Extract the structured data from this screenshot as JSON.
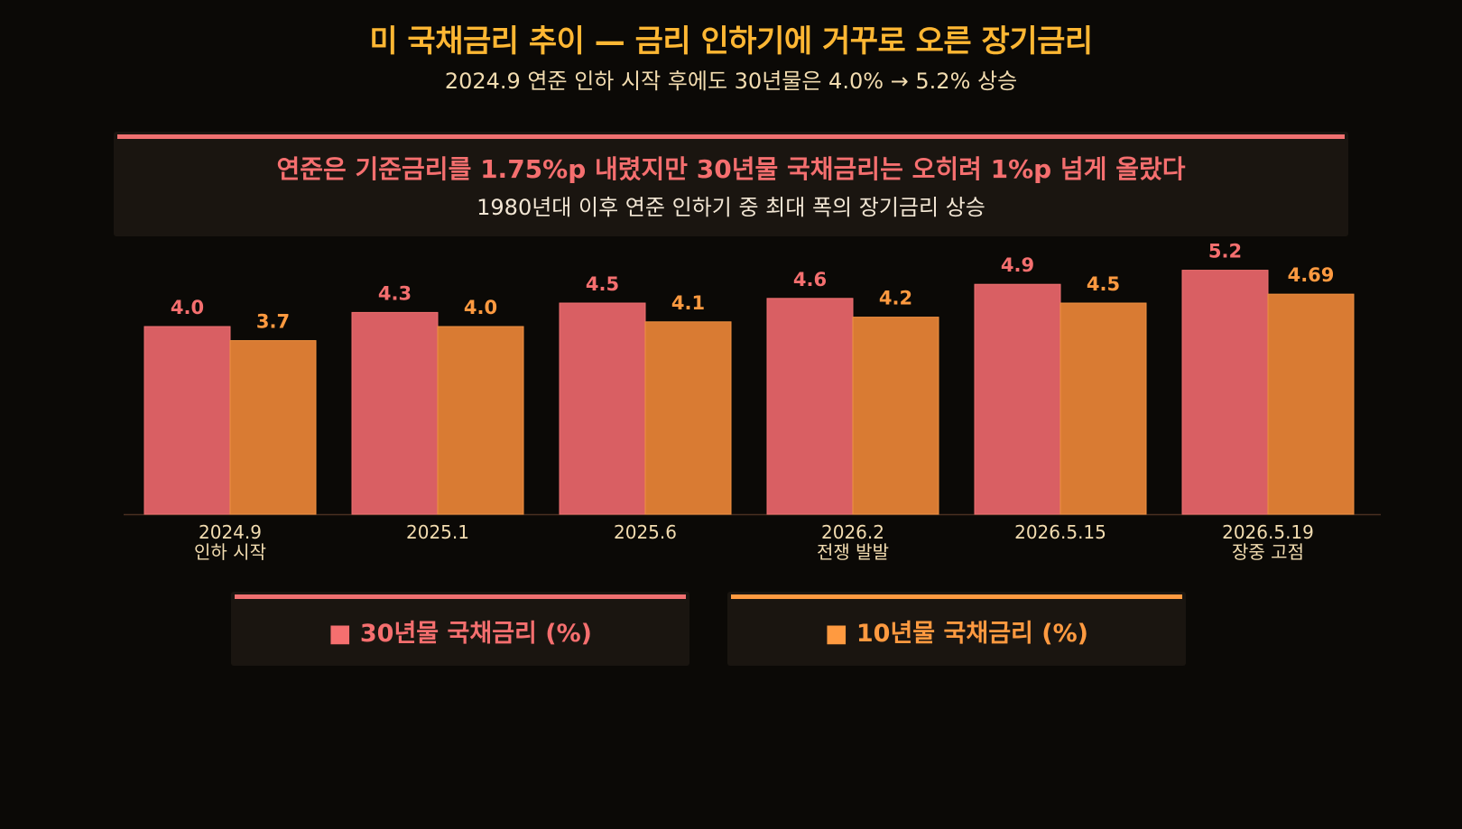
{
  "title": "미 국채금리 추이 — 금리 인하기에 거꾸로 오른 장기금리",
  "subtitle": "2024.9 연준 인하 시작 후에도 30년물은 4.0% → 5.2% 상승",
  "callout": {
    "headline": "연준은 기준금리를 1.75%p 내렸지만 30년물 국채금리는 오히려 1%p 넘게 올랐다",
    "sub": "1980년대 이후 연준 인하기 중 최대 폭의 장기금리 상승"
  },
  "colors": {
    "background": "#0b0906",
    "title": "#ffb733",
    "panel": "#1a1510",
    "series_30y": "#d95f63",
    "series_30y_label": "#f56f6f",
    "series_10y": "#d97b33",
    "series_10y_label": "#ff9a40",
    "axis_text": "#f2dcb0"
  },
  "legend": {
    "items": [
      {
        "marker": "■",
        "label": "30년물 국채금리 (%)"
      },
      {
        "marker": "■",
        "label": "10년물 국채금리 (%)"
      }
    ]
  },
  "chart_data": {
    "type": "bar",
    "categories": [
      [
        "2024.9",
        "인하 시작"
      ],
      [
        "2025.1"
      ],
      [
        "2025.6"
      ],
      [
        "2026.2",
        "전쟁 발발"
      ],
      [
        "2026.5.15"
      ],
      [
        "2026.5.19",
        "장중 고점"
      ]
    ],
    "series": [
      {
        "name": "30년물 국채금리 (%)",
        "values": [
          4.0,
          4.3,
          4.5,
          4.6,
          4.9,
          5.2
        ],
        "labels": [
          "4.0",
          "4.3",
          "4.5",
          "4.6",
          "4.9",
          "5.2"
        ]
      },
      {
        "name": "10년물 국채금리 (%)",
        "values": [
          3.7,
          4.0,
          4.1,
          4.2,
          4.5,
          4.69
        ],
        "labels": [
          "3.7",
          "4.0",
          "4.1",
          "4.2",
          "4.5",
          "4.69"
        ]
      }
    ],
    "xlabel": "",
    "ylabel": "",
    "ylim": [
      0,
      5.6
    ],
    "grid": false,
    "legend_position": "bottom"
  }
}
